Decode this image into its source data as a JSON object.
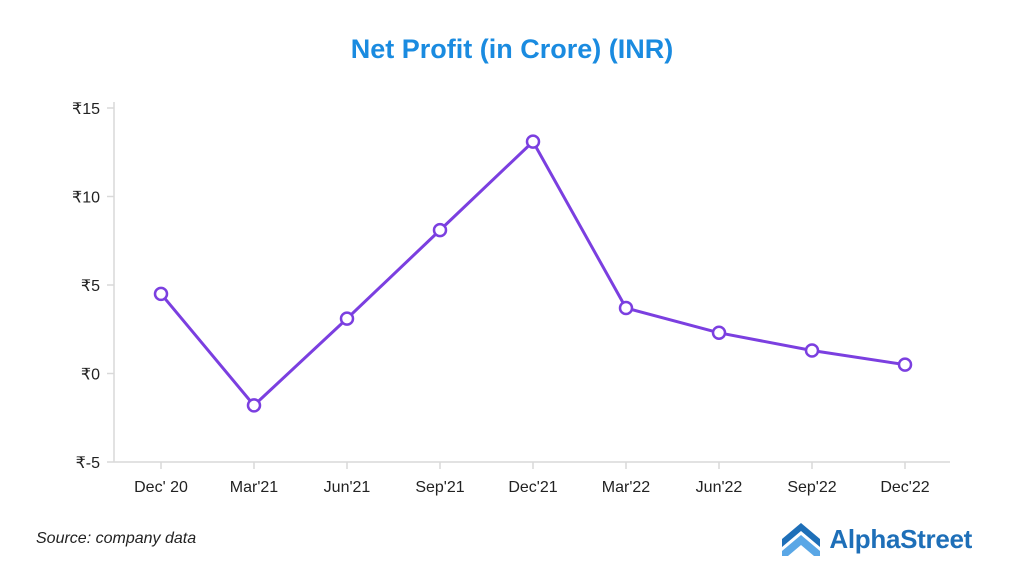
{
  "chart_data": {
    "type": "line",
    "title": "Net Profit (in Crore) (INR)",
    "categories": [
      "Dec' 20",
      "Mar'21",
      "Jun'21",
      "Sep'21",
      "Dec'21",
      "Mar'22",
      "Jun'22",
      "Sep'22",
      "Dec'22"
    ],
    "values": [
      4.5,
      -1.8,
      3.1,
      8.1,
      13.1,
      3.7,
      2.3,
      1.3,
      0.5
    ],
    "yticks": [
      15,
      10,
      5,
      0,
      -5
    ],
    "ytick_labels": [
      "₹15",
      "₹10",
      "₹5",
      "₹0",
      "₹-5"
    ],
    "ylim": [
      -5,
      15
    ],
    "xlabel": "",
    "ylabel": "",
    "grid": false,
    "legend": "none",
    "colors": {
      "line": "#7b3fe0",
      "title": "#1a8be0",
      "axis": "#d9d9d9"
    }
  },
  "footer": {
    "source": "Source: company data",
    "brand": "AlphaStreet",
    "brand_color": "#1e6fb8",
    "brand_icon": "alphastreet-logo-icon"
  }
}
